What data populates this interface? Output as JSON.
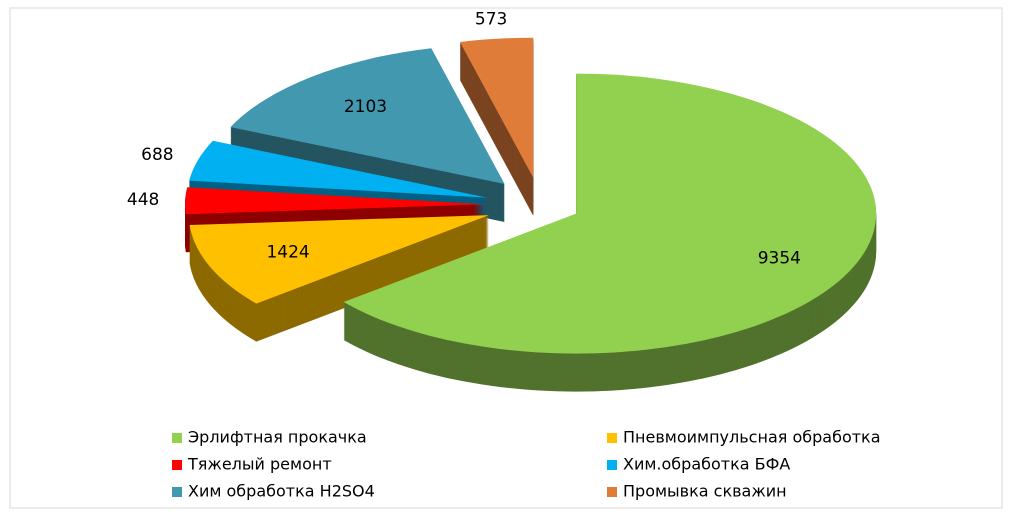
{
  "chart_data": {
    "type": "pie",
    "categories": [
      "Эрлифтная прокачка",
      "Пневмоимпульсная обработка",
      "Тяжелый ремонт",
      "Хим.обработка БФА",
      "Хим обработка H2SO4",
      "Промывка скважин"
    ],
    "values": [
      9354,
      1424,
      448,
      688,
      2103,
      573
    ],
    "colors": [
      "#92d050",
      "#ffc000",
      "#ff0000",
      "#00b0f0",
      "#4198af",
      "#e07c3a"
    ],
    "legend": "bottom"
  }
}
